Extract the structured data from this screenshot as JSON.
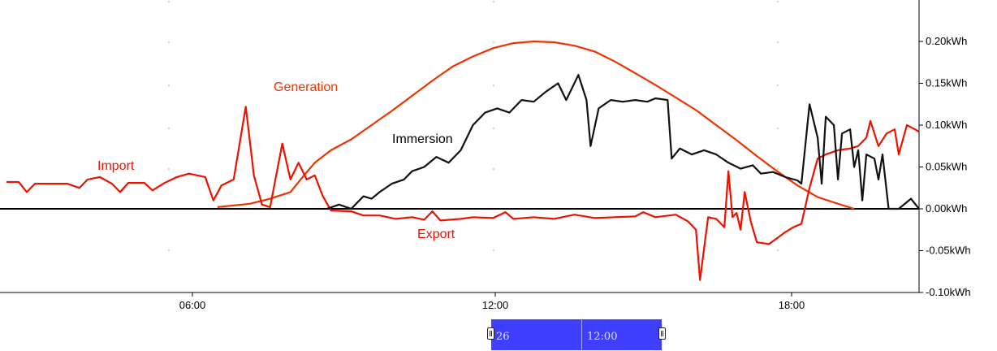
{
  "chart_data": {
    "type": "line",
    "x_ticks": [
      "06:00",
      "12:00",
      "18:00"
    ],
    "y_ticks": [
      "0.20kWh",
      "0.15kWh",
      "0.10kWh",
      "0.05kWh",
      "0.00kWh",
      "-0.05kWh",
      "-0.10kWh"
    ],
    "y_unit": "kWh",
    "xlim_hours": [
      0,
      22.5
    ],
    "ylim": [
      -0.1,
      0.25
    ],
    "annotations": [
      "Generation",
      "Import",
      "Immersion",
      "Export"
    ],
    "series": [
      {
        "name": "Generation",
        "color": "#ee3300",
        "points": [
          [
            5.2,
            0.002
          ],
          [
            6.0,
            0.006
          ],
          [
            6.5,
            0.012
          ],
          [
            7.0,
            0.02
          ],
          [
            7.3,
            0.038
          ],
          [
            7.6,
            0.055
          ],
          [
            8.0,
            0.07
          ],
          [
            8.5,
            0.083
          ],
          [
            9.0,
            0.1
          ],
          [
            9.5,
            0.117
          ],
          [
            10.0,
            0.135
          ],
          [
            10.5,
            0.153
          ],
          [
            11.0,
            0.17
          ],
          [
            11.5,
            0.182
          ],
          [
            12.0,
            0.192
          ],
          [
            12.5,
            0.198
          ],
          [
            13.0,
            0.2
          ],
          [
            13.5,
            0.199
          ],
          [
            14.0,
            0.195
          ],
          [
            14.5,
            0.188
          ],
          [
            15.0,
            0.176
          ],
          [
            15.5,
            0.162
          ],
          [
            16.0,
            0.148
          ],
          [
            16.5,
            0.133
          ],
          [
            17.0,
            0.118
          ],
          [
            17.5,
            0.1
          ],
          [
            18.0,
            0.082
          ],
          [
            18.5,
            0.063
          ],
          [
            19.0,
            0.045
          ],
          [
            19.5,
            0.028
          ],
          [
            20.0,
            0.014
          ],
          [
            20.5,
            0.006
          ],
          [
            20.9,
            0.0
          ]
        ]
      },
      {
        "name": "Import/Export",
        "color": "#ee1100",
        "points": [
          [
            0.0,
            0.032
          ],
          [
            0.3,
            0.032
          ],
          [
            0.5,
            0.02
          ],
          [
            0.7,
            0.03
          ],
          [
            1.0,
            0.03
          ],
          [
            1.5,
            0.03
          ],
          [
            1.8,
            0.025
          ],
          [
            2.0,
            0.035
          ],
          [
            2.3,
            0.038
          ],
          [
            2.6,
            0.03
          ],
          [
            2.8,
            0.02
          ],
          [
            3.0,
            0.031
          ],
          [
            3.4,
            0.031
          ],
          [
            3.6,
            0.022
          ],
          [
            3.9,
            0.031
          ],
          [
            4.2,
            0.038
          ],
          [
            4.5,
            0.042
          ],
          [
            4.9,
            0.038
          ],
          [
            5.1,
            0.01
          ],
          [
            5.3,
            0.028
          ],
          [
            5.6,
            0.035
          ],
          [
            5.9,
            0.122
          ],
          [
            6.1,
            0.04
          ],
          [
            6.3,
            0.005
          ],
          [
            6.5,
            0.002
          ],
          [
            6.8,
            0.078
          ],
          [
            7.0,
            0.035
          ],
          [
            7.2,
            0.055
          ],
          [
            7.4,
            0.035
          ],
          [
            7.6,
            0.04
          ],
          [
            7.8,
            0.015
          ],
          [
            8.0,
            -0.002
          ],
          [
            8.5,
            -0.003
          ],
          [
            8.8,
            -0.008
          ],
          [
            9.2,
            -0.008
          ],
          [
            9.6,
            -0.012
          ],
          [
            10.0,
            -0.01
          ],
          [
            10.3,
            -0.013
          ],
          [
            10.5,
            -0.003
          ],
          [
            10.7,
            -0.014
          ],
          [
            11.2,
            -0.012
          ],
          [
            11.5,
            -0.01
          ],
          [
            12.0,
            -0.011
          ],
          [
            12.3,
            -0.004
          ],
          [
            12.5,
            -0.012
          ],
          [
            13.0,
            -0.01
          ],
          [
            13.5,
            -0.012
          ],
          [
            14.0,
            -0.007
          ],
          [
            14.5,
            -0.011
          ],
          [
            15.0,
            -0.01
          ],
          [
            15.5,
            -0.009
          ],
          [
            15.7,
            -0.004
          ],
          [
            16.0,
            -0.01
          ],
          [
            16.5,
            -0.007
          ],
          [
            16.8,
            -0.015
          ],
          [
            17.0,
            -0.025
          ],
          [
            17.1,
            -0.085
          ],
          [
            17.3,
            -0.01
          ],
          [
            17.5,
            -0.012
          ],
          [
            17.7,
            -0.022
          ],
          [
            17.8,
            0.045
          ],
          [
            17.9,
            -0.01
          ],
          [
            18.0,
            -0.005
          ],
          [
            18.1,
            -0.025
          ],
          [
            18.2,
            0.02
          ],
          [
            18.35,
            -0.015
          ],
          [
            18.5,
            -0.04
          ],
          [
            18.8,
            -0.042
          ],
          [
            19.0,
            -0.035
          ],
          [
            19.2,
            -0.028
          ],
          [
            19.4,
            -0.022
          ],
          [
            19.6,
            -0.018
          ],
          [
            19.8,
            0.025
          ],
          [
            20.0,
            0.06
          ],
          [
            20.2,
            0.065
          ],
          [
            20.5,
            0.07
          ],
          [
            20.8,
            0.072
          ],
          [
            21.0,
            0.075
          ],
          [
            21.2,
            0.085
          ],
          [
            21.3,
            0.105
          ],
          [
            21.5,
            0.075
          ],
          [
            21.7,
            0.09
          ],
          [
            21.9,
            0.095
          ],
          [
            22.0,
            0.065
          ],
          [
            22.2,
            0.1
          ],
          [
            22.4,
            0.095
          ],
          [
            22.5,
            0.092
          ]
        ]
      },
      {
        "name": "Immersion",
        "color": "#111111",
        "points": [
          [
            7.9,
            0.0
          ],
          [
            8.2,
            0.005
          ],
          [
            8.5,
            0.0
          ],
          [
            8.8,
            0.015
          ],
          [
            9.0,
            0.012
          ],
          [
            9.2,
            0.02
          ],
          [
            9.5,
            0.03
          ],
          [
            9.8,
            0.035
          ],
          [
            10.0,
            0.045
          ],
          [
            10.3,
            0.05
          ],
          [
            10.6,
            0.062
          ],
          [
            10.9,
            0.055
          ],
          [
            11.2,
            0.07
          ],
          [
            11.5,
            0.1
          ],
          [
            11.8,
            0.115
          ],
          [
            12.1,
            0.12
          ],
          [
            12.4,
            0.115
          ],
          [
            12.7,
            0.13
          ],
          [
            13.0,
            0.128
          ],
          [
            13.3,
            0.14
          ],
          [
            13.6,
            0.15
          ],
          [
            13.8,
            0.13
          ],
          [
            14.1,
            0.16
          ],
          [
            14.3,
            0.13
          ],
          [
            14.4,
            0.075
          ],
          [
            14.6,
            0.12
          ],
          [
            14.9,
            0.13
          ],
          [
            15.2,
            0.128
          ],
          [
            15.5,
            0.13
          ],
          [
            15.8,
            0.128
          ],
          [
            16.0,
            0.132
          ],
          [
            16.3,
            0.13
          ],
          [
            16.4,
            0.06
          ],
          [
            16.6,
            0.072
          ],
          [
            16.9,
            0.065
          ],
          [
            17.2,
            0.07
          ],
          [
            17.5,
            0.065
          ],
          [
            17.8,
            0.055
          ],
          [
            18.1,
            0.048
          ],
          [
            18.4,
            0.052
          ],
          [
            18.6,
            0.042
          ],
          [
            18.9,
            0.044
          ],
          [
            19.2,
            0.038
          ],
          [
            19.5,
            0.034
          ],
          [
            19.6,
            0.03
          ],
          [
            19.8,
            0.125
          ],
          [
            20.0,
            0.085
          ],
          [
            20.1,
            0.03
          ],
          [
            20.2,
            0.11
          ],
          [
            20.4,
            0.1
          ],
          [
            20.5,
            0.035
          ],
          [
            20.6,
            0.09
          ],
          [
            20.8,
            0.095
          ],
          [
            20.9,
            0.05
          ],
          [
            21.0,
            0.07
          ],
          [
            21.1,
            0.01
          ],
          [
            21.2,
            0.065
          ],
          [
            21.4,
            0.06
          ],
          [
            21.5,
            0.035
          ],
          [
            21.6,
            0.065
          ],
          [
            21.75,
            0.0
          ],
          [
            22.0,
            0.0
          ],
          [
            22.3,
            0.012
          ],
          [
            22.5,
            0.0
          ]
        ]
      }
    ]
  },
  "navigator": {
    "left_label": "26",
    "right_label": "12:00"
  }
}
